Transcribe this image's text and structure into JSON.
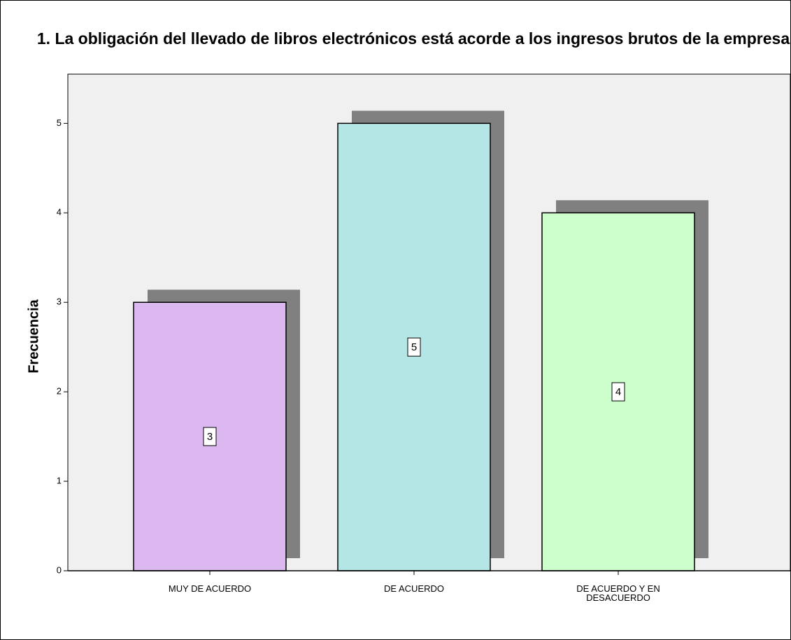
{
  "chart_data": {
    "type": "bar",
    "title": "1. La obligación del llevado de libros electrónicos está acorde a los ingresos brutos de la empresa",
    "y_label": "Frecuencia",
    "categories": [
      "MUY DE ACUERDO",
      "DE ACUERDO",
      "DE ACUERDO Y EN DESACUERDO"
    ],
    "values": [
      3,
      5,
      4
    ],
    "colors": [
      "#dcb8f0",
      "#b5e6e6",
      "#ccffcc"
    ],
    "ylim": [
      0,
      5.55
    ],
    "yticks": [
      0,
      1,
      2,
      3,
      4,
      5
    ],
    "grid": false
  }
}
